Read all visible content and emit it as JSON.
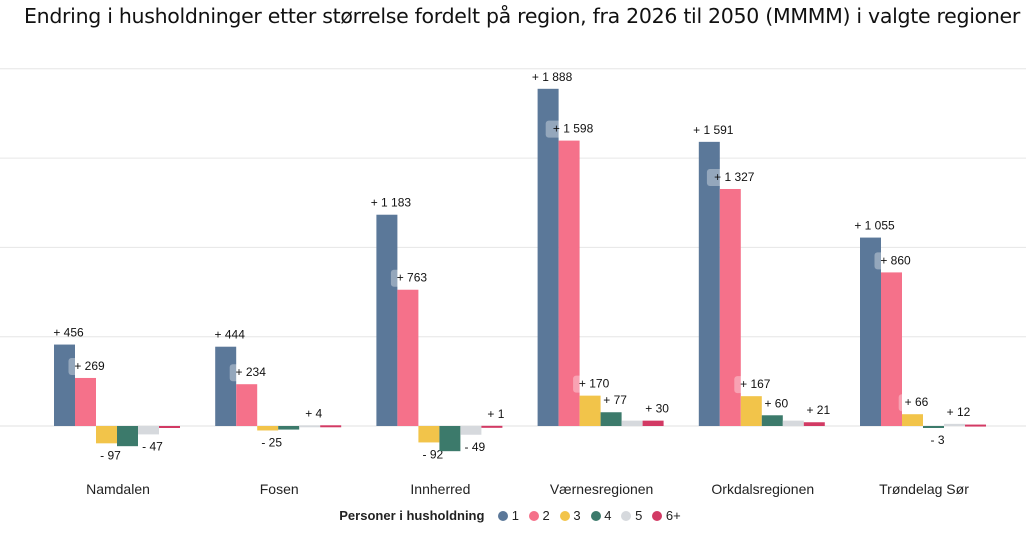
{
  "chart_data": {
    "type": "bar",
    "title": "Endring i husholdninger etter størrelse fordelt på region, fra 2026 til 2050 (MMMM) i valgte regioner",
    "categories": [
      "Namdalen",
      "Fosen",
      "Innherred",
      "Værnesregionen",
      "Orkdalsregionen",
      "Trøndelag Sør"
    ],
    "series": [
      {
        "name": "1",
        "color": "#5b7899",
        "values": [
          456,
          444,
          1183,
          1888,
          1591,
          1055
        ],
        "labels": [
          "+ 456",
          "+ 444",
          "+ 1 183",
          "+ 1 888",
          "+ 1 591",
          "+ 1 055"
        ]
      },
      {
        "name": "2",
        "color": "#f5718a",
        "values": [
          269,
          234,
          763,
          1598,
          1327,
          860
        ],
        "labels": [
          "+ 269",
          "+ 234",
          "+ 763",
          "+ 1 598",
          "+ 1 327",
          "+ 860"
        ]
      },
      {
        "name": "3",
        "color": "#f2c44a",
        "values": [
          -97,
          -25,
          -92,
          170,
          167,
          66
        ],
        "labels": [
          "- 97",
          "- 25",
          "- 92",
          "+ 170",
          "+ 167",
          "+ 66"
        ]
      },
      {
        "name": "4",
        "color": "#3c7a6b",
        "values": [
          -113,
          -20,
          -141,
          77,
          60,
          -3
        ],
        "labels": [
          "",
          "",
          "",
          "+ 77",
          "+ 60",
          "- 3"
        ]
      },
      {
        "name": "5",
        "color": "#d6d9dd",
        "values": [
          -47,
          4,
          -49,
          30,
          30,
          12
        ],
        "labels": [
          "- 47",
          "+ 4",
          "- 49",
          "",
          "",
          "+ 12"
        ]
      },
      {
        "name": "6+",
        "color": "#d23a64",
        "values": [
          -8,
          4,
          1,
          30,
          21,
          8
        ],
        "labels": [
          "",
          "",
          "+ 1",
          "+ 30",
          "+ 21",
          ""
        ]
      }
    ],
    "ylim": [
      -170,
      2000
    ],
    "grid": true,
    "legend": {
      "title": "Personer i husholdning",
      "position": "bottom"
    }
  }
}
